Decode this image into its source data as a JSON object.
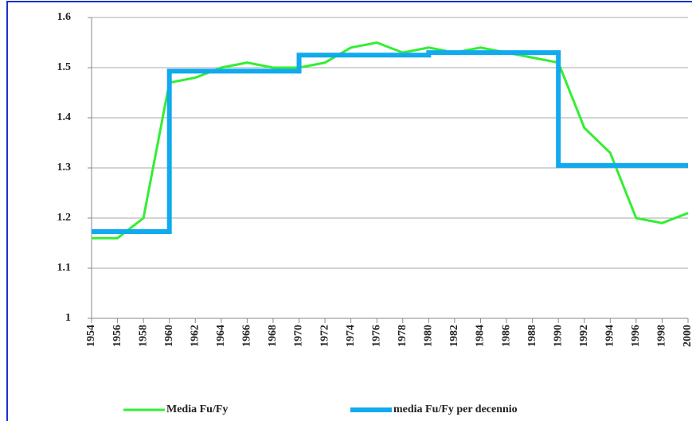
{
  "chart_data": {
    "type": "line",
    "xlim": [
      1954,
      2000
    ],
    "xticks": [
      1954,
      1956,
      1958,
      1960,
      1962,
      1964,
      1966,
      1968,
      1970,
      1972,
      1974,
      1976,
      1978,
      1980,
      1982,
      1984,
      1986,
      1988,
      1990,
      1992,
      1994,
      1996,
      1998,
      2000
    ],
    "ylim": [
      1,
      1.6
    ],
    "yticks": [
      1,
      1.1,
      1.2,
      1.3,
      1.4,
      1.5,
      1.6
    ],
    "grid": true,
    "legend": "bottom",
    "series": [
      {
        "name": "Media Fu/Fy",
        "color": "#33ee33",
        "x": [
          1954,
          1956,
          1958,
          1960,
          1962,
          1964,
          1966,
          1968,
          1970,
          1972,
          1974,
          1976,
          1978,
          1980,
          1982,
          1984,
          1986,
          1988,
          1990,
          1992,
          1994,
          1996,
          1998,
          2000
        ],
        "values": [
          1.16,
          1.16,
          1.2,
          1.47,
          1.48,
          1.5,
          1.51,
          1.5,
          1.5,
          1.51,
          1.54,
          1.55,
          1.53,
          1.54,
          1.53,
          1.54,
          1.53,
          1.52,
          1.51,
          1.38,
          1.33,
          1.2,
          1.19,
          1.21
        ]
      },
      {
        "name": "media Fu/Fy per decennio",
        "color": "#11aaee",
        "x": [
          1954,
          1960,
          1960,
          1970,
          1970,
          1980,
          1980,
          1990,
          1990,
          2000
        ],
        "values": [
          1.173,
          1.173,
          1.493,
          1.493,
          1.525,
          1.525,
          1.53,
          1.53,
          1.305,
          1.305
        ]
      }
    ]
  }
}
